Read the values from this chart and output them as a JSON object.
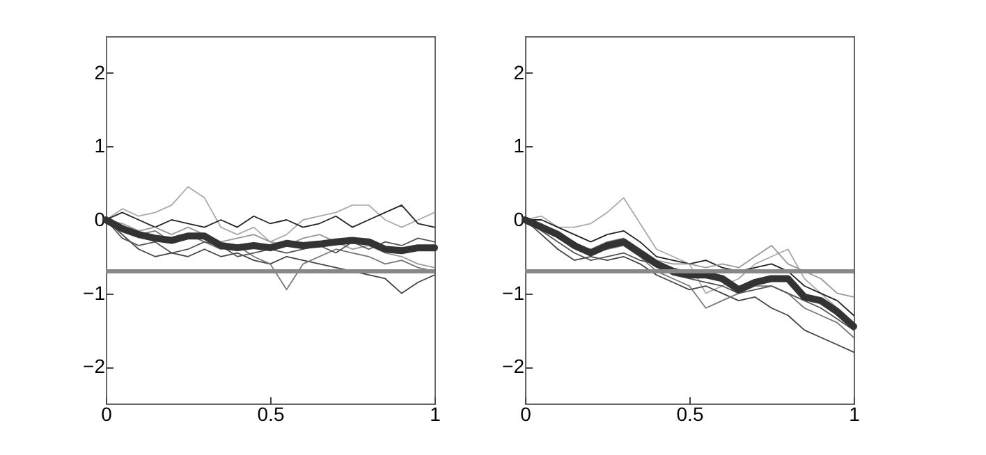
{
  "chart_data": [
    {
      "type": "line",
      "x": [
        0,
        0.05,
        0.1,
        0.15,
        0.2,
        0.25,
        0.3,
        0.35,
        0.4,
        0.45,
        0.5,
        0.55,
        0.6,
        0.65,
        0.7,
        0.75,
        0.8,
        0.85,
        0.9,
        0.95,
        1
      ],
      "xlim": [
        0,
        1
      ],
      "xticks": [
        0,
        0.5,
        1
      ],
      "ylim": [
        -2.5,
        2.5
      ],
      "yticks": [
        -2,
        -1,
        0,
        1,
        2
      ],
      "grid": false,
      "ref_lines": [
        {
          "axis": "y",
          "value": -0.7,
          "color": "#888888"
        }
      ],
      "series": [
        {
          "color": "#aaaaaa",
          "values": [
            0,
            0.15,
            0.05,
            0.1,
            0.2,
            0.45,
            0.3,
            -0.1,
            -0.2,
            -0.1,
            -0.3,
            -0.2,
            0,
            0.05,
            0.1,
            0.2,
            0.2,
            0,
            -0.1,
            0,
            0.1
          ]
        },
        {
          "color": "#444444",
          "values": [
            0,
            -0.2,
            -0.4,
            -0.5,
            -0.45,
            -0.5,
            -0.4,
            -0.5,
            -0.45,
            -0.55,
            -0.6,
            -0.5,
            -0.55,
            -0.6,
            -0.65,
            -0.7,
            -0.75,
            -0.8,
            -1.0,
            -0.85,
            -0.75
          ]
        },
        {
          "color": "#777777",
          "values": [
            0,
            -0.1,
            -0.2,
            -0.15,
            -0.3,
            -0.2,
            -0.3,
            -0.4,
            -0.35,
            -0.5,
            -0.6,
            -0.95,
            -0.6,
            -0.5,
            -0.4,
            -0.45,
            -0.5,
            -0.6,
            -0.55,
            -0.65,
            -0.7
          ]
        },
        {
          "color": "#222222",
          "values": [
            0,
            0.1,
            0,
            -0.1,
            0,
            -0.05,
            -0.1,
            0,
            -0.1,
            0.05,
            -0.05,
            0,
            -0.1,
            -0.05,
            0.05,
            -0.1,
            0,
            0.1,
            0.2,
            -0.05,
            -0.1
          ]
        },
        {
          "color": "#999999",
          "values": [
            0,
            -0.05,
            -0.15,
            -0.1,
            -0.2,
            -0.1,
            -0.2,
            -0.3,
            -0.25,
            -0.2,
            -0.3,
            -0.35,
            -0.25,
            -0.2,
            -0.3,
            -0.4,
            -0.35,
            -0.45,
            -0.5,
            -0.6,
            -0.65
          ]
        },
        {
          "color": "#555555",
          "values": [
            0,
            -0.25,
            -0.35,
            -0.3,
            -0.45,
            -0.4,
            -0.3,
            -0.35,
            -0.5,
            -0.45,
            -0.4,
            -0.45,
            -0.4,
            -0.35,
            -0.45,
            -0.3,
            -0.4,
            -0.3,
            -0.35,
            -0.25,
            -0.3
          ]
        },
        {
          "color": "#333333",
          "values": [
            0,
            -0.12,
            -0.2,
            -0.25,
            -0.28,
            -0.22,
            -0.22,
            -0.35,
            -0.38,
            -0.35,
            -0.38,
            -0.32,
            -0.35,
            -0.33,
            -0.3,
            -0.28,
            -0.3,
            -0.4,
            -0.42,
            -0.38,
            -0.38
          ]
        }
      ]
    },
    {
      "type": "line",
      "x": [
        0,
        0.05,
        0.1,
        0.15,
        0.2,
        0.25,
        0.3,
        0.35,
        0.4,
        0.45,
        0.5,
        0.55,
        0.6,
        0.65,
        0.7,
        0.75,
        0.8,
        0.85,
        0.9,
        0.95,
        1
      ],
      "xlim": [
        0,
        1
      ],
      "xticks": [
        0,
        0.5,
        1
      ],
      "ylim": [
        -2.5,
        2.5
      ],
      "yticks": [
        -2,
        -1,
        0,
        1,
        2
      ],
      "grid": false,
      "ref_lines": [
        {
          "axis": "y",
          "value": -0.7,
          "color": "#888888"
        }
      ],
      "series": [
        {
          "color": "#aaaaaa",
          "values": [
            0,
            0.05,
            -0.1,
            -0.1,
            -0.05,
            0.1,
            0.3,
            -0.05,
            -0.4,
            -0.5,
            -0.6,
            -1.0,
            -0.9,
            -0.8,
            -0.6,
            -0.5,
            -0.4,
            -0.8,
            -1.0,
            -1.2,
            -1.4
          ]
        },
        {
          "color": "#444444",
          "values": [
            0,
            -0.2,
            -0.4,
            -0.55,
            -0.5,
            -0.55,
            -0.5,
            -0.6,
            -0.75,
            -0.85,
            -0.95,
            -0.9,
            -1.0,
            -1.1,
            -1.05,
            -1.2,
            -1.3,
            -1.5,
            -1.6,
            -1.7,
            -1.8
          ]
        },
        {
          "color": "#777777",
          "values": [
            0,
            -0.1,
            -0.2,
            -0.3,
            -0.45,
            -0.4,
            -0.35,
            -0.5,
            -0.7,
            -0.8,
            -0.9,
            -1.2,
            -1.1,
            -1.0,
            -0.9,
            -0.9,
            -1.0,
            -1.2,
            -1.3,
            -1.4,
            -1.6
          ]
        },
        {
          "color": "#222222",
          "values": [
            0,
            0,
            -0.1,
            -0.2,
            -0.3,
            -0.2,
            -0.15,
            -0.3,
            -0.5,
            -0.55,
            -0.6,
            -0.55,
            -0.65,
            -0.7,
            -0.65,
            -0.6,
            -0.7,
            -0.9,
            -1.0,
            -1.1,
            -1.3
          ]
        },
        {
          "color": "#999999",
          "values": [
            0,
            -0.05,
            -0.25,
            -0.35,
            -0.4,
            -0.3,
            -0.25,
            -0.4,
            -0.55,
            -0.6,
            -0.6,
            -0.65,
            -0.6,
            -0.65,
            -0.5,
            -0.35,
            -0.6,
            -0.7,
            -0.8,
            -1.0,
            -1.05
          ]
        },
        {
          "color": "#555555",
          "values": [
            0,
            -0.15,
            -0.3,
            -0.45,
            -0.55,
            -0.5,
            -0.45,
            -0.55,
            -0.6,
            -0.75,
            -0.8,
            -0.85,
            -0.9,
            -1.0,
            -0.95,
            -0.9,
            -1.0,
            -1.1,
            -1.2,
            -1.35,
            -1.5
          ]
        },
        {
          "color": "#333333",
          "values": [
            0,
            -0.1,
            -0.2,
            -0.35,
            -0.45,
            -0.35,
            -0.3,
            -0.45,
            -0.6,
            -0.7,
            -0.75,
            -0.75,
            -0.8,
            -0.95,
            -0.85,
            -0.8,
            -0.8,
            -1.05,
            -1.1,
            -1.25,
            -1.45
          ]
        }
      ]
    }
  ]
}
